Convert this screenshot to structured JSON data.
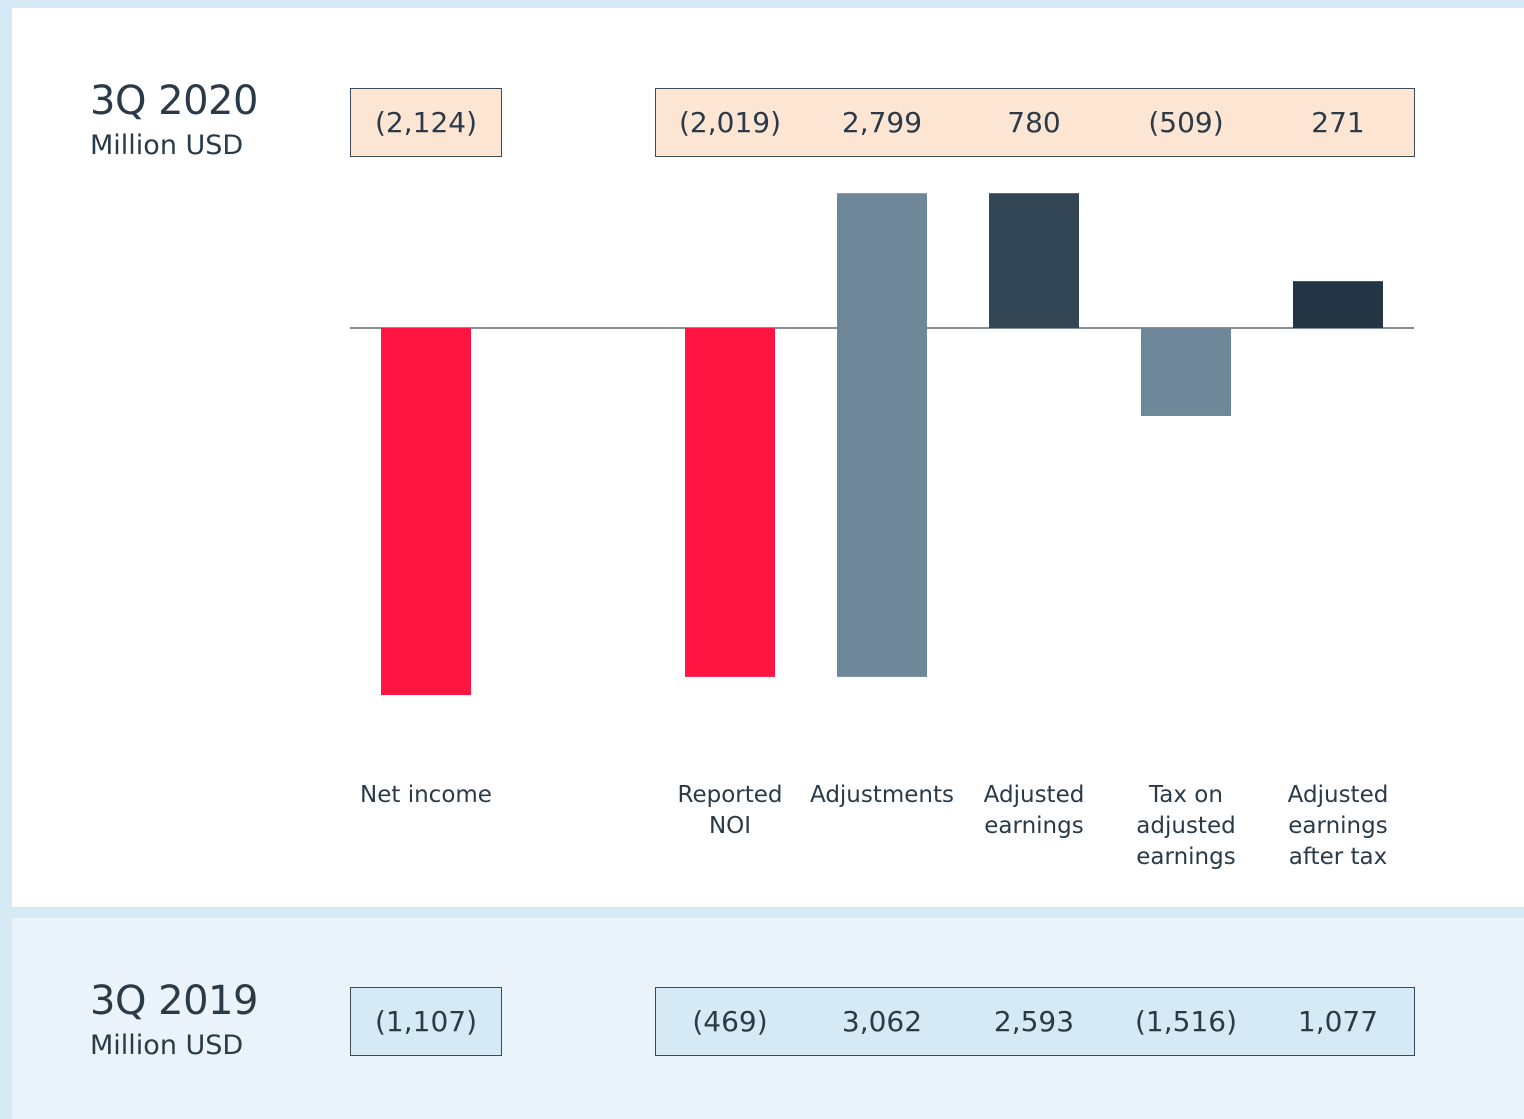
{
  "chart_data": {
    "type": "bar",
    "title": "3Q 2020",
    "subtitle": "Million USD",
    "categories": [
      "Net income",
      "Reported NOI",
      "Adjustments",
      "Adjusted earnings",
      "Tax on adjusted earnings",
      "Adjusted earnings after tax"
    ],
    "values": [
      -2124,
      -2019,
      2799,
      780,
      -509,
      271
    ],
    "value_labels": [
      "(2,124)",
      "(2,019)",
      "2,799",
      "780",
      "(509)",
      "271"
    ],
    "colors": [
      "#ff1541",
      "#ff1541",
      "#6e8799",
      "#324656",
      "#6e8799",
      "#243646"
    ],
    "comparison": {
      "title": "3Q 2019",
      "subtitle": "Million USD",
      "values": [
        -1107,
        -469,
        3062,
        2593,
        -1516,
        1077
      ],
      "value_labels": [
        "(1,107)",
        "(469)",
        "3,062",
        "2,593",
        "(1,516)",
        "1,077"
      ]
    }
  }
}
